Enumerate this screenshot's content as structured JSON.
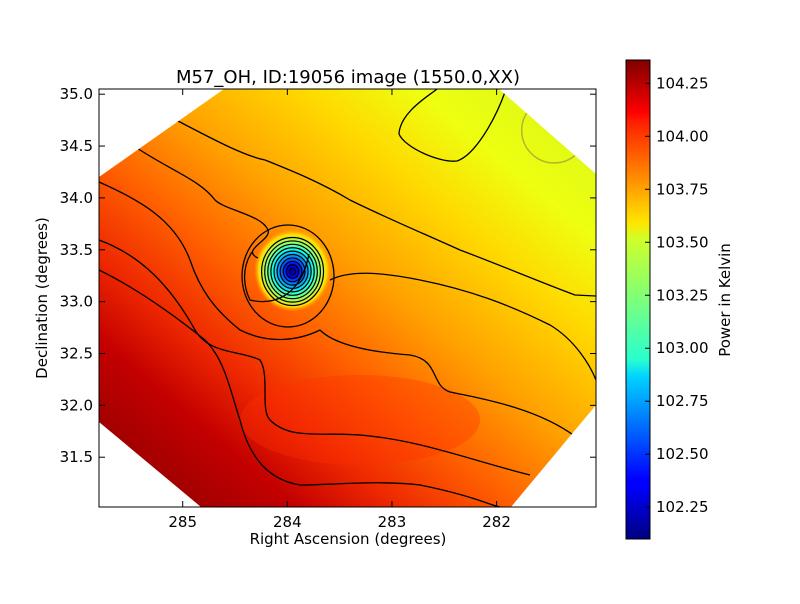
{
  "chart_data": {
    "type": "heatmap",
    "title": "M57_OH, ID:19056 image (1550.0,XX)",
    "xlabel": "Right Ascension (degrees)",
    "ylabel": "Declination (degrees)",
    "xlim": [
      285.8,
      281.05
    ],
    "ylim": [
      31.02,
      35.05
    ],
    "x_axis_inverted": true,
    "x_ticks": [
      {
        "value": 285,
        "label": "285"
      },
      {
        "value": 284,
        "label": "284"
      },
      {
        "value": 283,
        "label": "283"
      },
      {
        "value": 282,
        "label": "282"
      }
    ],
    "y_ticks": [
      {
        "value": 31.5,
        "label": "31.5"
      },
      {
        "value": 32.0,
        "label": "32.0"
      },
      {
        "value": 32.5,
        "label": "32.5"
      },
      {
        "value": 33.0,
        "label": "33.0"
      },
      {
        "value": 33.5,
        "label": "33.5"
      },
      {
        "value": 34.0,
        "label": "34.0"
      },
      {
        "value": 34.5,
        "label": "34.5"
      },
      {
        "value": 35.0,
        "label": "35.0"
      }
    ],
    "colorbar": {
      "label": "Power in Kelvin",
      "colormap": "jet",
      "range": [
        102.1,
        104.36
      ],
      "ticks": [
        {
          "value": 102.25,
          "label": "102.25"
        },
        {
          "value": 102.5,
          "label": "102.50"
        },
        {
          "value": 102.75,
          "label": "102.75"
        },
        {
          "value": 103.0,
          "label": "103.00"
        },
        {
          "value": 103.25,
          "label": "103.25"
        },
        {
          "value": 103.5,
          "label": "103.50"
        },
        {
          "value": 103.75,
          "label": "103.75"
        },
        {
          "value": 104.0,
          "label": "104.00"
        },
        {
          "value": 104.25,
          "label": "104.25"
        }
      ]
    },
    "field": {
      "background_trend": {
        "low": 103.45,
        "high": 104.33,
        "direction": "increasing toward lower-left (higher RA, lower Dec)"
      },
      "source": {
        "ra": 283.95,
        "dec": 33.3,
        "peak_value": 102.15,
        "radius_deg": 0.35
      },
      "beam_circle": {
        "ra": 281.45,
        "dec": 34.65,
        "radius_deg": 0.31,
        "color": "#b5b52c"
      }
    },
    "contour_color": "#000000",
    "grid": false
  }
}
